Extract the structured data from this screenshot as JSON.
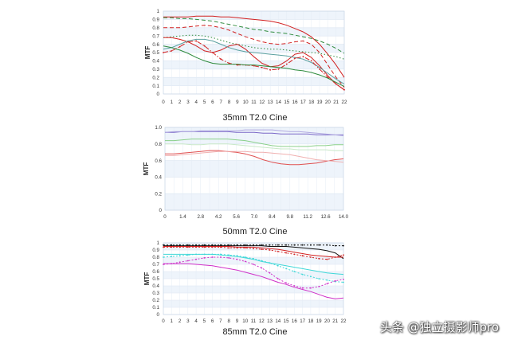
{
  "watermark": "头条 @独立摄影师pro",
  "chart_data": [
    {
      "type": "line",
      "title": "35mm T2.0 Cine",
      "ylabel": "MTF",
      "xlabel": "",
      "x": [
        0,
        1,
        2,
        3,
        4,
        5,
        6,
        7,
        8,
        9,
        10,
        11,
        12,
        13,
        14,
        15,
        16,
        17,
        18,
        19,
        20,
        21,
        22
      ],
      "ylim": [
        0,
        1
      ],
      "yticks": [
        "0",
        "0.1",
        "0.2",
        "0.3",
        "0.4",
        "0.5",
        "0.6",
        "0.7",
        "0.8",
        "0.9",
        "1"
      ],
      "xticks": [
        "0",
        "1",
        "2",
        "3",
        "4",
        "5",
        "6",
        "7",
        "8",
        "9",
        "10",
        "11",
        "12",
        "13",
        "14",
        "15",
        "16",
        "17",
        "18",
        "19",
        "20",
        "21",
        "22"
      ],
      "grid": true,
      "series": [
        {
          "color": "#d22020",
          "dash": "solid",
          "values": [
            0.93,
            0.93,
            0.93,
            0.93,
            0.94,
            0.94,
            0.94,
            0.93,
            0.93,
            0.92,
            0.91,
            0.9,
            0.89,
            0.88,
            0.86,
            0.83,
            0.79,
            0.75,
            0.69,
            0.6,
            0.48,
            0.35,
            0.2
          ]
        },
        {
          "color": "#d22020",
          "dash": "dash",
          "values": [
            0.8,
            0.8,
            0.8,
            0.81,
            0.82,
            0.83,
            0.82,
            0.8,
            0.77,
            0.73,
            0.69,
            0.66,
            0.63,
            0.61,
            0.6,
            0.61,
            0.63,
            0.64,
            0.6,
            0.5,
            0.35,
            0.2,
            0.08
          ]
        },
        {
          "color": "#2e8b3c",
          "dash": "dash",
          "values": [
            0.92,
            0.92,
            0.91,
            0.91,
            0.9,
            0.89,
            0.88,
            0.86,
            0.84,
            0.82,
            0.8,
            0.78,
            0.77,
            0.75,
            0.74,
            0.73,
            0.71,
            0.69,
            0.67,
            0.64,
            0.6,
            0.55,
            0.49
          ]
        },
        {
          "color": "#2e8b3c",
          "dash": "dot",
          "values": [
            0.68,
            0.69,
            0.7,
            0.71,
            0.71,
            0.7,
            0.68,
            0.65,
            0.62,
            0.6,
            0.58,
            0.56,
            0.55,
            0.54,
            0.54,
            0.53,
            0.52,
            0.51,
            0.5,
            0.49,
            0.47,
            0.45,
            0.42
          ]
        },
        {
          "color": "#d22020",
          "dash": "solid",
          "values": [
            0.68,
            0.68,
            0.66,
            0.63,
            0.58,
            0.52,
            0.5,
            0.53,
            0.58,
            0.6,
            0.54,
            0.45,
            0.37,
            0.33,
            0.34,
            0.4,
            0.48,
            0.5,
            0.44,
            0.34,
            0.22,
            0.12,
            0.05
          ]
        },
        {
          "color": "#5aa0a0",
          "dash": "solid",
          "values": [
            0.54,
            0.56,
            0.6,
            0.64,
            0.66,
            0.66,
            0.64,
            0.6,
            0.56,
            0.53,
            0.51,
            0.5,
            0.49,
            0.48,
            0.47,
            0.46,
            0.44,
            0.42,
            0.38,
            0.32,
            0.25,
            0.18,
            0.12
          ]
        },
        {
          "color": "#d22020",
          "dash": "dashdot",
          "values": [
            0.5,
            0.52,
            0.57,
            0.63,
            0.64,
            0.58,
            0.5,
            0.42,
            0.37,
            0.35,
            0.35,
            0.34,
            0.32,
            0.29,
            0.3,
            0.36,
            0.43,
            0.45,
            0.4,
            0.3,
            0.2,
            0.12,
            0.05
          ]
        },
        {
          "color": "#2e8b3c",
          "dash": "solid",
          "values": [
            0.58,
            0.56,
            0.53,
            0.49,
            0.44,
            0.4,
            0.37,
            0.36,
            0.36,
            0.36,
            0.35,
            0.35,
            0.34,
            0.33,
            0.32,
            0.31,
            0.29,
            0.28,
            0.26,
            0.23,
            0.19,
            0.14,
            0.09
          ]
        }
      ]
    },
    {
      "type": "line",
      "title": "50mm T2.0 Cine",
      "ylabel": "MTF",
      "xlabel": "",
      "x": [
        0,
        0.7,
        1.4,
        2.1,
        2.8,
        3.5,
        4.2,
        4.9,
        5.6,
        6.3,
        7.0,
        7.7,
        8.4,
        9.1,
        9.8,
        10.5,
        11.2,
        11.9,
        12.6,
        13.3,
        14.0
      ],
      "ylim": [
        0,
        1
      ],
      "yticks": [
        "0",
        "0.2",
        "0.4",
        "0.6",
        "0.8",
        "1.0"
      ],
      "xticks": [
        "0",
        "1.4",
        "2.8",
        "4.2",
        "5.6",
        "7.0",
        "8.4",
        "9.8",
        "11.2",
        "12.6",
        "14.0"
      ],
      "grid": true,
      "series": [
        {
          "color": "#7b68c8",
          "dash": "solid",
          "values": [
            0.94,
            0.94,
            0.95,
            0.95,
            0.95,
            0.95,
            0.95,
            0.95,
            0.94,
            0.94,
            0.94,
            0.93,
            0.93,
            0.92,
            0.92,
            0.92,
            0.92,
            0.91,
            0.91,
            0.91,
            0.91
          ]
        },
        {
          "color": "#b0a8e0",
          "dash": "solid",
          "values": [
            0.94,
            0.95,
            0.95,
            0.95,
            0.96,
            0.96,
            0.96,
            0.96,
            0.96,
            0.97,
            0.97,
            0.97,
            0.97,
            0.96,
            0.95,
            0.95,
            0.94,
            0.93,
            0.92,
            0.91,
            0.9
          ]
        },
        {
          "color": "#8ad08a",
          "dash": "solid",
          "values": [
            0.84,
            0.84,
            0.85,
            0.86,
            0.86,
            0.86,
            0.86,
            0.86,
            0.85,
            0.84,
            0.82,
            0.8,
            0.78,
            0.77,
            0.77,
            0.77,
            0.77,
            0.78,
            0.78,
            0.79,
            0.79
          ]
        },
        {
          "color": "#c8e8c8",
          "dash": "solid",
          "values": [
            0.8,
            0.8,
            0.8,
            0.79,
            0.79,
            0.8,
            0.8,
            0.8,
            0.79,
            0.78,
            0.77,
            0.76,
            0.75,
            0.74,
            0.74,
            0.73,
            0.73,
            0.73,
            0.73,
            0.72,
            0.72
          ]
        },
        {
          "color": "#e05050",
          "dash": "solid",
          "values": [
            0.68,
            0.68,
            0.69,
            0.7,
            0.71,
            0.72,
            0.72,
            0.71,
            0.7,
            0.68,
            0.65,
            0.61,
            0.58,
            0.56,
            0.55,
            0.55,
            0.56,
            0.57,
            0.59,
            0.61,
            0.62
          ]
        },
        {
          "color": "#f0b0b0",
          "dash": "solid",
          "values": [
            0.66,
            0.66,
            0.67,
            0.68,
            0.69,
            0.7,
            0.71,
            0.71,
            0.71,
            0.71,
            0.7,
            0.7,
            0.69,
            0.68,
            0.67,
            0.65,
            0.63,
            0.61,
            0.6,
            0.59,
            0.58
          ]
        }
      ]
    },
    {
      "type": "line",
      "title": "85mm T2.0 Cine",
      "ylabel": "MTF",
      "xlabel": "",
      "x": [
        0,
        1,
        2,
        3,
        4,
        5,
        6,
        7,
        8,
        9,
        10,
        11,
        12,
        13,
        14,
        15,
        16,
        17,
        18,
        19,
        20,
        21,
        22
      ],
      "ylim": [
        0,
        1
      ],
      "yticks": [
        "0",
        "0.1",
        "0.2",
        "0.3",
        "0.4",
        "0.5",
        "0.6",
        "0.7",
        "0.8",
        "0.9",
        "1"
      ],
      "xticks": [
        "0",
        "1",
        "2",
        "3",
        "4",
        "5",
        "6",
        "7",
        "8",
        "9",
        "10",
        "11",
        "12",
        "13",
        "14",
        "15",
        "16",
        "17",
        "18",
        "19",
        "20",
        "21",
        "22"
      ],
      "grid": true,
      "series": [
        {
          "color": "#111111",
          "dash": "dotmark",
          "values": [
            0.97,
            0.97,
            0.97,
            0.97,
            0.97,
            0.97,
            0.97,
            0.97,
            0.97,
            0.97,
            0.97,
            0.97,
            0.97,
            0.97,
            0.97,
            0.97,
            0.97,
            0.97,
            0.97,
            0.97,
            0.97,
            0.96,
            0.96
          ]
        },
        {
          "color": "#111111",
          "dash": "solid",
          "values": [
            0.96,
            0.96,
            0.96,
            0.96,
            0.96,
            0.96,
            0.96,
            0.96,
            0.96,
            0.96,
            0.96,
            0.96,
            0.96,
            0.95,
            0.95,
            0.95,
            0.94,
            0.93,
            0.92,
            0.91,
            0.89,
            0.86,
            0.78
          ]
        },
        {
          "color": "#d22020",
          "dash": "solid",
          "values": [
            0.95,
            0.95,
            0.95,
            0.95,
            0.95,
            0.95,
            0.95,
            0.95,
            0.95,
            0.94,
            0.94,
            0.94,
            0.93,
            0.92,
            0.91,
            0.89,
            0.87,
            0.85,
            0.83,
            0.82,
            0.81,
            0.8,
            0.8
          ]
        },
        {
          "color": "#d22020",
          "dash": "dotmark",
          "values": [
            0.94,
            0.94,
            0.94,
            0.94,
            0.94,
            0.94,
            0.94,
            0.94,
            0.93,
            0.93,
            0.93,
            0.92,
            0.91,
            0.9,
            0.88,
            0.86,
            0.84,
            0.82,
            0.8,
            0.78,
            0.77,
            0.8,
            0.83
          ]
        },
        {
          "color": "#40d8d8",
          "dash": "solid",
          "values": [
            0.84,
            0.84,
            0.84,
            0.84,
            0.84,
            0.84,
            0.84,
            0.83,
            0.82,
            0.81,
            0.79,
            0.77,
            0.74,
            0.72,
            0.7,
            0.68,
            0.66,
            0.64,
            0.62,
            0.6,
            0.58,
            0.57,
            0.56
          ]
        },
        {
          "color": "#40d8d8",
          "dash": "dotmark",
          "values": [
            0.8,
            0.81,
            0.82,
            0.83,
            0.84,
            0.84,
            0.84,
            0.84,
            0.83,
            0.82,
            0.8,
            0.78,
            0.75,
            0.72,
            0.68,
            0.64,
            0.6,
            0.56,
            0.53,
            0.5,
            0.48,
            0.46,
            0.45
          ]
        },
        {
          "color": "#d030c8",
          "dash": "dotmark",
          "values": [
            0.7,
            0.71,
            0.73,
            0.75,
            0.77,
            0.79,
            0.8,
            0.8,
            0.79,
            0.77,
            0.74,
            0.7,
            0.65,
            0.58,
            0.5,
            0.44,
            0.4,
            0.37,
            0.37,
            0.39,
            0.43,
            0.47,
            0.49
          ]
        },
        {
          "color": "#d030c8",
          "dash": "solid",
          "values": [
            0.71,
            0.71,
            0.71,
            0.71,
            0.7,
            0.69,
            0.68,
            0.66,
            0.64,
            0.62,
            0.59,
            0.56,
            0.53,
            0.49,
            0.45,
            0.42,
            0.38,
            0.35,
            0.32,
            0.28,
            0.24,
            0.22,
            0.23
          ]
        }
      ]
    }
  ]
}
